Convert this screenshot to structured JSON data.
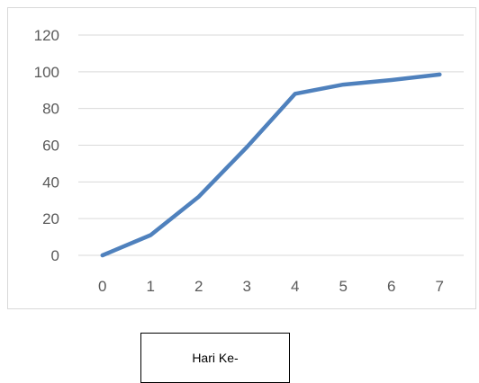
{
  "chart_data": {
    "type": "line",
    "x": [
      0,
      1,
      2,
      3,
      4,
      5,
      6,
      7
    ],
    "series": [
      {
        "values": [
          0,
          11,
          32,
          59,
          88,
          93,
          95.5,
          98.5
        ]
      }
    ],
    "xticks": [
      "0",
      "1",
      "2",
      "3",
      "4",
      "5",
      "6",
      "7"
    ],
    "yticks": [
      "0",
      "20",
      "40",
      "60",
      "80",
      "100",
      "120"
    ],
    "ylim": [
      0,
      120
    ],
    "grid": "horizontal",
    "legend": "none",
    "xlabel": "Hari Ke-",
    "line_color": "#4f81bd",
    "grid_color": "#d9d9d9"
  }
}
